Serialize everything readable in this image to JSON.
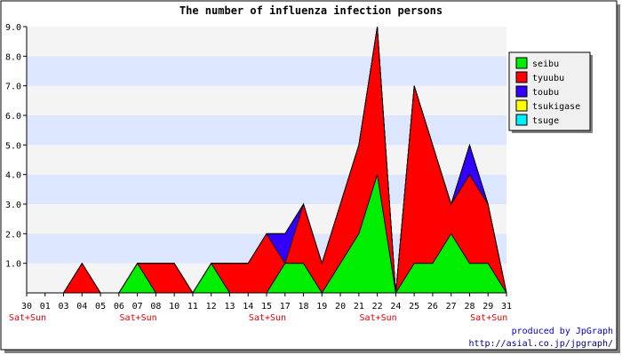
{
  "chart_data": {
    "type": "area",
    "stacked": true,
    "title": "The number of influenza infection persons",
    "x": [
      "30",
      "01",
      "03",
      "04",
      "05",
      "06",
      "07",
      "08",
      "10",
      "11",
      "12",
      "13",
      "14",
      "15",
      "17",
      "18",
      "19",
      "20",
      "21",
      "22",
      "24",
      "25",
      "26",
      "27",
      "28",
      "29",
      "31"
    ],
    "weekend_labels": [
      "Sat+Sun",
      "",
      "",
      "",
      "",
      "",
      "Sat+Sun",
      "",
      "",
      "",
      "",
      "",
      "",
      "Sat+Sun",
      "",
      "",
      "",
      "",
      "",
      "Sat+Sun",
      "",
      "",
      "",
      "",
      "",
      "Sat+Sun",
      ""
    ],
    "ylim": [
      0,
      9
    ],
    "yticks": [
      "1.0",
      "2.0",
      "3.0",
      "4.0",
      "5.0",
      "6.0",
      "7.0",
      "8.0",
      "9.0"
    ],
    "grid": "alternating horizontal bands",
    "legend_position": "right",
    "series": [
      {
        "name": "seibu",
        "color": "#00ee00",
        "values": [
          0,
          0,
          0,
          0,
          0,
          0,
          1,
          0,
          0,
          0,
          1,
          0,
          0,
          0,
          1,
          1,
          0,
          1,
          2,
          4,
          0,
          1,
          1,
          2,
          1,
          1,
          0
        ]
      },
      {
        "name": "tyuubu",
        "color": "#ff0000",
        "values": [
          0,
          0,
          0,
          1,
          0,
          0,
          0,
          1,
          1,
          0,
          0,
          1,
          1,
          2,
          0,
          2,
          1,
          2,
          3,
          5,
          0,
          6,
          4,
          1,
          3,
          2,
          0
        ]
      },
      {
        "name": "toubu",
        "color": "#3300ff",
        "values": [
          0,
          0,
          0,
          0,
          0,
          0,
          0,
          0,
          0,
          0,
          0,
          0,
          0,
          0,
          1,
          0,
          0,
          0,
          0,
          0,
          0,
          0,
          0,
          0,
          1,
          0,
          0
        ]
      },
      {
        "name": "tsukigase",
        "color": "#ffff00",
        "values": [
          0,
          0,
          0,
          0,
          0,
          0,
          0,
          0,
          0,
          0,
          0,
          0,
          0,
          0,
          0,
          0,
          0,
          0,
          0,
          0,
          0,
          0,
          0,
          0,
          0,
          0,
          0
        ]
      },
      {
        "name": "tsuge",
        "color": "#00eeff",
        "values": [
          0,
          0,
          0,
          0,
          0,
          0,
          0,
          0,
          0,
          0,
          0,
          0,
          0,
          0,
          0,
          0,
          0,
          0,
          0,
          0,
          0,
          0,
          0,
          0,
          0,
          0,
          0
        ]
      }
    ]
  },
  "credit": {
    "line1": "produced by JpGraph",
    "line2": "http://asial.co.jp/jpgraph/"
  }
}
